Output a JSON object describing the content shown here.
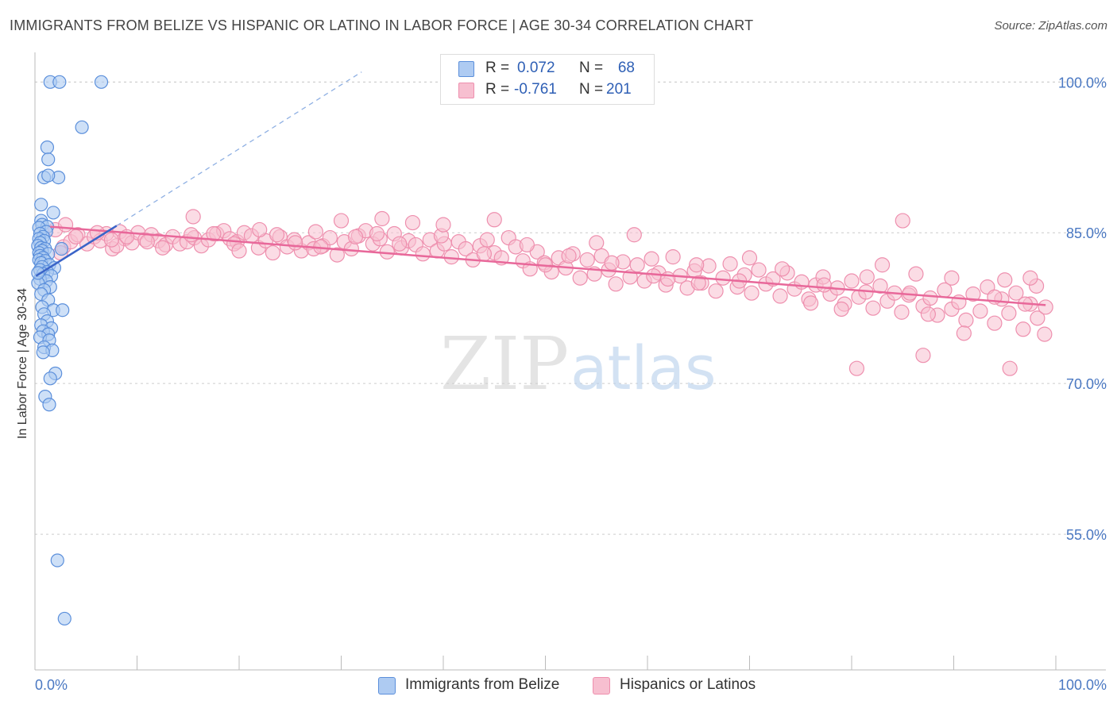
{
  "title": "IMMIGRANTS FROM BELIZE VS HISPANIC OR LATINO IN LABOR FORCE | AGE 30-34 CORRELATION CHART",
  "source": "Source: ZipAtlas.com",
  "watermark": {
    "zip": "ZIP",
    "atlas": "atlas"
  },
  "colors": {
    "blue_fill": "#aecbf2",
    "blue_stroke": "#5b8fdb",
    "blue_line": "#3a64c8",
    "pink_fill": "#f7bfd0",
    "pink_stroke": "#ee8fae",
    "pink_line": "#e8689a",
    "axis_text": "#4a78c2",
    "grid": "#cccccc"
  },
  "legend": {
    "rows": [
      {
        "r_label": "R =",
        "r_value": "0.072",
        "n_label": "N =",
        "n_value": "68"
      },
      {
        "r_label": "R =",
        "r_value": "-0.761",
        "n_label": "N =",
        "n_value": "201"
      }
    ]
  },
  "bottom_legend": {
    "series1": "Immigrants from Belize",
    "series2": "Hispanics or Latinos"
  },
  "chart_data": {
    "type": "scatter",
    "title": "IMMIGRANTS FROM BELIZE VS HISPANIC OR LATINO IN LABOR FORCE | AGE 30-34 CORRELATION CHART",
    "xlabel": "",
    "ylabel": "In Labor Force | Age 30-34",
    "xlim": [
      0,
      100
    ],
    "ylim": [
      41.5,
      102
    ],
    "x_tick_labels": [
      "0.0%",
      "100.0%"
    ],
    "y_ticks": [
      55,
      70,
      85,
      100
    ],
    "y_tick_labels": [
      "55.0%",
      "70.0%",
      "85.0%",
      "100.0%"
    ],
    "grid": true,
    "legend_position": "top-center",
    "series": [
      {
        "name": "Immigrants from Belize",
        "color": "#aecbf2",
        "trend": {
          "x": [
            0.1,
            8.0
          ],
          "y": [
            80.7,
            85.7
          ]
        },
        "trend_extension": {
          "x": [
            8.0,
            32.0
          ],
          "y": [
            85.7,
            101.0
          ]
        },
        "points": [
          [
            1.5,
            100.0
          ],
          [
            2.4,
            100.0
          ],
          [
            6.5,
            100.0
          ],
          [
            4.6,
            95.5
          ],
          [
            1.2,
            93.5
          ],
          [
            1.3,
            92.3
          ],
          [
            0.9,
            90.5
          ],
          [
            2.3,
            90.5
          ],
          [
            1.3,
            90.7
          ],
          [
            0.6,
            87.8
          ],
          [
            1.8,
            87.0
          ],
          [
            0.6,
            86.2
          ],
          [
            0.7,
            85.8
          ],
          [
            1.2,
            85.6
          ],
          [
            0.4,
            85.5
          ],
          [
            1.1,
            85.1
          ],
          [
            0.5,
            84.9
          ],
          [
            0.8,
            84.6
          ],
          [
            0.4,
            84.4
          ],
          [
            0.9,
            84.2
          ],
          [
            0.5,
            84.0
          ],
          [
            0.3,
            83.7
          ],
          [
            0.6,
            83.5
          ],
          [
            1.0,
            83.4
          ],
          [
            0.7,
            83.2
          ],
          [
            0.4,
            83.0
          ],
          [
            1.3,
            82.9
          ],
          [
            0.5,
            82.7
          ],
          [
            0.8,
            82.5
          ],
          [
            0.4,
            82.3
          ],
          [
            1.0,
            82.2
          ],
          [
            0.6,
            82.0
          ],
          [
            1.4,
            81.8
          ],
          [
            0.7,
            81.6
          ],
          [
            1.9,
            81.5
          ],
          [
            0.5,
            81.3
          ],
          [
            1.2,
            81.1
          ],
          [
            0.8,
            80.9
          ],
          [
            1.6,
            80.7
          ],
          [
            0.5,
            80.4
          ],
          [
            1.1,
            80.2
          ],
          [
            0.3,
            80.0
          ],
          [
            1.5,
            79.6
          ],
          [
            0.9,
            79.3
          ],
          [
            0.6,
            78.9
          ],
          [
            1.3,
            78.3
          ],
          [
            0.7,
            77.6
          ],
          [
            1.8,
            77.3
          ],
          [
            2.7,
            77.3
          ],
          [
            0.9,
            76.9
          ],
          [
            1.2,
            76.2
          ],
          [
            0.6,
            75.8
          ],
          [
            1.6,
            75.5
          ],
          [
            0.8,
            75.2
          ],
          [
            1.3,
            74.9
          ],
          [
            0.5,
            74.6
          ],
          [
            1.4,
            74.3
          ],
          [
            0.9,
            73.6
          ],
          [
            1.7,
            73.3
          ],
          [
            0.8,
            73.1
          ],
          [
            2.0,
            71.0
          ],
          [
            1.5,
            70.5
          ],
          [
            1.0,
            68.7
          ],
          [
            1.4,
            67.9
          ],
          [
            2.2,
            52.4
          ],
          [
            2.9,
            46.6
          ],
          [
            2.6,
            83.4
          ],
          [
            0.3,
            81.0
          ]
        ]
      },
      {
        "name": "Hispanics or Latinos",
        "color": "#f7bfd0",
        "trend": {
          "x": [
            1.5,
            99.0
          ],
          "y": [
            85.6,
            77.8
          ]
        },
        "points": [
          [
            2.0,
            85.3
          ],
          [
            2.8,
            83.6
          ],
          [
            3.5,
            84.1
          ],
          [
            4.2,
            84.8
          ],
          [
            5.1,
            83.9
          ],
          [
            5.8,
            84.6
          ],
          [
            6.4,
            84.2
          ],
          [
            7.0,
            84.9
          ],
          [
            7.6,
            83.4
          ],
          [
            8.3,
            85.1
          ],
          [
            8.8,
            84.4
          ],
          [
            9.5,
            84.0
          ],
          [
            10.1,
            85.0
          ],
          [
            10.8,
            84.3
          ],
          [
            11.4,
            84.8
          ],
          [
            12.1,
            84.2
          ],
          [
            12.8,
            83.8
          ],
          [
            13.5,
            84.6
          ],
          [
            14.2,
            83.9
          ],
          [
            14.9,
            84.1
          ],
          [
            15.6,
            84.5
          ],
          [
            16.3,
            83.7
          ],
          [
            17.0,
            84.3
          ],
          [
            17.8,
            84.9
          ],
          [
            18.5,
            85.2
          ],
          [
            19.1,
            84.4
          ],
          [
            19.8,
            84.1
          ],
          [
            20.5,
            85.0
          ],
          [
            21.2,
            84.7
          ],
          [
            21.9,
            83.5
          ],
          [
            22.6,
            84.2
          ],
          [
            23.3,
            83.0
          ],
          [
            24.0,
            84.6
          ],
          [
            24.7,
            83.6
          ],
          [
            25.4,
            84.3
          ],
          [
            26.1,
            83.2
          ],
          [
            26.8,
            84.0
          ],
          [
            27.5,
            85.1
          ],
          [
            28.2,
            83.7
          ],
          [
            28.9,
            84.5
          ],
          [
            29.6,
            82.8
          ],
          [
            30.3,
            84.1
          ],
          [
            31.0,
            83.4
          ],
          [
            31.7,
            84.7
          ],
          [
            32.4,
            85.2
          ],
          [
            33.1,
            83.9
          ],
          [
            33.8,
            84.4
          ],
          [
            34.5,
            83.1
          ],
          [
            35.2,
            84.9
          ],
          [
            35.9,
            83.5
          ],
          [
            36.6,
            84.2
          ],
          [
            37.3,
            83.8
          ],
          [
            38.0,
            82.9
          ],
          [
            38.7,
            84.3
          ],
          [
            39.4,
            83.2
          ],
          [
            40.1,
            83.9
          ],
          [
            40.8,
            82.6
          ],
          [
            41.5,
            84.1
          ],
          [
            42.2,
            83.4
          ],
          [
            42.9,
            82.3
          ],
          [
            43.6,
            83.7
          ],
          [
            44.3,
            84.3
          ],
          [
            45.0,
            83.0
          ],
          [
            45.7,
            82.5
          ],
          [
            46.4,
            84.5
          ],
          [
            47.1,
            83.6
          ],
          [
            47.8,
            82.2
          ],
          [
            48.5,
            81.4
          ],
          [
            49.2,
            83.1
          ],
          [
            49.9,
            82.0
          ],
          [
            50.6,
            81.1
          ],
          [
            51.3,
            82.5
          ],
          [
            52.0,
            81.5
          ],
          [
            52.7,
            82.9
          ],
          [
            53.4,
            80.5
          ],
          [
            54.1,
            82.3
          ],
          [
            54.8,
            80.9
          ],
          [
            55.5,
            82.7
          ],
          [
            56.2,
            81.3
          ],
          [
            56.9,
            79.9
          ],
          [
            57.6,
            82.1
          ],
          [
            58.3,
            80.6
          ],
          [
            59.0,
            81.8
          ],
          [
            59.7,
            80.2
          ],
          [
            60.4,
            82.4
          ],
          [
            61.1,
            81.0
          ],
          [
            61.8,
            79.8
          ],
          [
            62.5,
            82.6
          ],
          [
            63.2,
            80.7
          ],
          [
            63.9,
            79.5
          ],
          [
            64.6,
            81.2
          ],
          [
            65.3,
            80.0
          ],
          [
            66.0,
            81.7
          ],
          [
            66.7,
            79.2
          ],
          [
            67.4,
            80.5
          ],
          [
            68.1,
            81.9
          ],
          [
            68.8,
            79.6
          ],
          [
            69.5,
            80.8
          ],
          [
            70.2,
            79.0
          ],
          [
            70.9,
            81.3
          ],
          [
            71.6,
            79.9
          ],
          [
            72.3,
            80.4
          ],
          [
            73.0,
            78.7
          ],
          [
            73.7,
            81.0
          ],
          [
            74.4,
            79.4
          ],
          [
            75.1,
            80.1
          ],
          [
            75.8,
            78.4
          ],
          [
            76.5,
            79.8
          ],
          [
            77.2,
            80.6
          ],
          [
            77.9,
            78.9
          ],
          [
            78.6,
            79.5
          ],
          [
            79.3,
            77.9
          ],
          [
            80.0,
            80.2
          ],
          [
            80.7,
            78.6
          ],
          [
            81.4,
            79.1
          ],
          [
            82.1,
            77.5
          ],
          [
            82.8,
            79.7
          ],
          [
            83.5,
            78.2
          ],
          [
            84.2,
            79.0
          ],
          [
            84.9,
            77.1
          ],
          [
            85.6,
            78.8
          ],
          [
            86.3,
            80.9
          ],
          [
            87.0,
            77.7
          ],
          [
            87.7,
            78.5
          ],
          [
            88.4,
            76.8
          ],
          [
            89.1,
            79.3
          ],
          [
            89.8,
            77.4
          ],
          [
            90.5,
            78.1
          ],
          [
            91.2,
            76.3
          ],
          [
            91.9,
            78.9
          ],
          [
            92.6,
            77.2
          ],
          [
            93.3,
            79.6
          ],
          [
            94.0,
            76.0
          ],
          [
            94.7,
            78.4
          ],
          [
            95.4,
            77.0
          ],
          [
            96.1,
            79.0
          ],
          [
            96.8,
            75.4
          ],
          [
            97.5,
            77.9
          ],
          [
            98.2,
            76.5
          ],
          [
            98.9,
            74.9
          ],
          [
            2.5,
            83.0
          ],
          [
            4.0,
            84.6
          ],
          [
            6.1,
            85.0
          ],
          [
            8.0,
            83.7
          ],
          [
            11.0,
            84.1
          ],
          [
            15.3,
            84.8
          ],
          [
            19.5,
            83.9
          ],
          [
            23.7,
            84.8
          ],
          [
            27.3,
            83.4
          ],
          [
            31.4,
            84.6
          ],
          [
            35.7,
            83.9
          ],
          [
            39.8,
            84.7
          ],
          [
            44.0,
            82.9
          ],
          [
            48.2,
            83.8
          ],
          [
            52.3,
            82.7
          ],
          [
            56.5,
            82.0
          ],
          [
            60.6,
            80.7
          ],
          [
            64.8,
            81.8
          ],
          [
            69.0,
            80.2
          ],
          [
            73.2,
            81.4
          ],
          [
            77.3,
            79.8
          ],
          [
            81.5,
            80.6
          ],
          [
            85.7,
            79.0
          ],
          [
            89.8,
            80.5
          ],
          [
            94.0,
            78.6
          ],
          [
            98.1,
            79.7
          ],
          [
            15.5,
            86.6
          ],
          [
            30.0,
            86.2
          ],
          [
            34.0,
            86.4
          ],
          [
            58.7,
            84.8
          ],
          [
            85.0,
            86.2
          ],
          [
            76.0,
            78.0
          ],
          [
            65.0,
            80.0
          ],
          [
            50.0,
            81.8
          ],
          [
            40.0,
            85.8
          ],
          [
            45.0,
            86.3
          ],
          [
            55.0,
            84.0
          ],
          [
            62.0,
            80.4
          ],
          [
            70.0,
            82.5
          ],
          [
            37.0,
            86.0
          ],
          [
            7.5,
            84.3
          ],
          [
            12.5,
            83.5
          ],
          [
            20.0,
            83.2
          ],
          [
            25.5,
            84.0
          ],
          [
            3.0,
            85.8
          ],
          [
            9.0,
            84.6
          ],
          [
            17.5,
            84.9
          ],
          [
            22.0,
            85.3
          ],
          [
            28.0,
            83.6
          ],
          [
            33.5,
            84.9
          ],
          [
            79.0,
            77.4
          ],
          [
            83.0,
            81.8
          ],
          [
            87.5,
            76.9
          ],
          [
            91.0,
            75.0
          ],
          [
            95.0,
            80.3
          ],
          [
            97.0,
            77.9
          ],
          [
            80.5,
            71.5
          ],
          [
            95.5,
            71.5
          ],
          [
            87.0,
            72.8
          ],
          [
            97.5,
            80.5
          ],
          [
            99.0,
            77.6
          ]
        ]
      }
    ]
  }
}
